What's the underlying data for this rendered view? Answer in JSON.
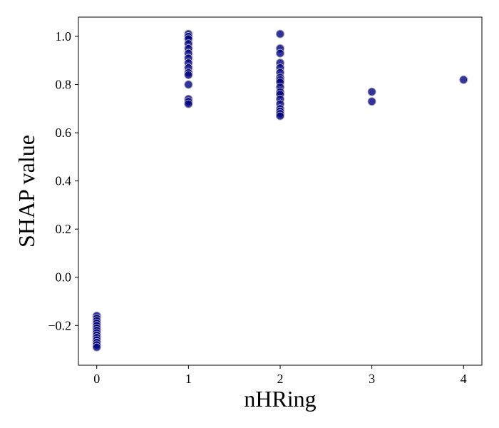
{
  "chart_data": {
    "type": "scatter",
    "title": "",
    "xlabel": "nHRing",
    "ylabel": "SHAP value",
    "xlim": [
      -0.2,
      4.2
    ],
    "ylim": [
      -0.365,
      1.08
    ],
    "xticks": [
      0,
      1,
      2,
      3,
      4
    ],
    "xtick_labels": [
      "0",
      "1",
      "2",
      "3",
      "4"
    ],
    "yticks": [
      -0.2,
      0.0,
      0.2,
      0.4,
      0.6,
      0.8,
      1.0
    ],
    "ytick_labels": [
      "−0.2",
      "0.0",
      "0.2",
      "0.4",
      "0.6",
      "0.8",
      "1.0"
    ],
    "grid": false,
    "marker_color": "#00007f",
    "marker_edge_color": "#9a9ab8",
    "points": [
      {
        "x": 0,
        "y": -0.16
      },
      {
        "x": 0,
        "y": -0.17
      },
      {
        "x": 0,
        "y": -0.18
      },
      {
        "x": 0,
        "y": -0.19
      },
      {
        "x": 0,
        "y": -0.2
      },
      {
        "x": 0,
        "y": -0.21
      },
      {
        "x": 0,
        "y": -0.22
      },
      {
        "x": 0,
        "y": -0.23
      },
      {
        "x": 0,
        "y": -0.24
      },
      {
        "x": 0,
        "y": -0.25
      },
      {
        "x": 0,
        "y": -0.26
      },
      {
        "x": 0,
        "y": -0.27
      },
      {
        "x": 0,
        "y": -0.28
      },
      {
        "x": 0,
        "y": -0.29
      },
      {
        "x": 1,
        "y": 1.01
      },
      {
        "x": 1,
        "y": 1.0
      },
      {
        "x": 1,
        "y": 0.99
      },
      {
        "x": 1,
        "y": 0.97
      },
      {
        "x": 1,
        "y": 0.95
      },
      {
        "x": 1,
        "y": 0.93
      },
      {
        "x": 1,
        "y": 0.91
      },
      {
        "x": 1,
        "y": 0.89
      },
      {
        "x": 1,
        "y": 0.87
      },
      {
        "x": 1,
        "y": 0.85
      },
      {
        "x": 1,
        "y": 0.84
      },
      {
        "x": 1,
        "y": 0.8
      },
      {
        "x": 1,
        "y": 0.74
      },
      {
        "x": 1,
        "y": 0.73
      },
      {
        "x": 1,
        "y": 0.72
      },
      {
        "x": 2,
        "y": 1.01
      },
      {
        "x": 2,
        "y": 0.95
      },
      {
        "x": 2,
        "y": 0.93
      },
      {
        "x": 2,
        "y": 0.89
      },
      {
        "x": 2,
        "y": 0.87
      },
      {
        "x": 2,
        "y": 0.85
      },
      {
        "x": 2,
        "y": 0.83
      },
      {
        "x": 2,
        "y": 0.82
      },
      {
        "x": 2,
        "y": 0.81
      },
      {
        "x": 2,
        "y": 0.79
      },
      {
        "x": 2,
        "y": 0.77
      },
      {
        "x": 2,
        "y": 0.76
      },
      {
        "x": 2,
        "y": 0.74
      },
      {
        "x": 2,
        "y": 0.72
      },
      {
        "x": 2,
        "y": 0.7
      },
      {
        "x": 2,
        "y": 0.69
      },
      {
        "x": 2,
        "y": 0.68
      },
      {
        "x": 2,
        "y": 0.67
      },
      {
        "x": 3,
        "y": 0.77
      },
      {
        "x": 3,
        "y": 0.73
      },
      {
        "x": 4,
        "y": 0.82
      }
    ]
  }
}
